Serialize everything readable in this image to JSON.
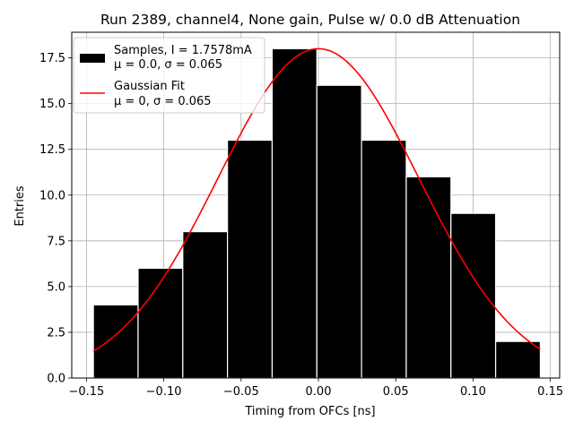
{
  "chart_data": {
    "type": "bar",
    "title": "Run 2389, channel4, None gain, Pulse w/ 0.0 dB Attenuation",
    "xlabel": "Timing from OFCs [ns]",
    "ylabel": "Entries",
    "xlim": [
      -0.1595,
      0.156
    ],
    "ylim": [
      0,
      18.9
    ],
    "grid": true,
    "legend_position": "top-left",
    "xticks": [
      -0.15,
      -0.1,
      -0.05,
      0.0,
      0.05,
      0.1,
      0.15
    ],
    "xtick_labels": [
      "−0.15",
      "−0.10",
      "−0.05",
      "0.00",
      "0.05",
      "0.10",
      "0.15"
    ],
    "yticks": [
      0.0,
      2.5,
      5.0,
      7.5,
      10.0,
      12.5,
      15.0,
      17.5
    ],
    "ytick_labels": [
      "0.0",
      "2.5",
      "5.0",
      "7.5",
      "10.0",
      "12.5",
      "15.0",
      "17.5"
    ],
    "bin_edges": [
      -0.1455,
      -0.1166,
      -0.0877,
      -0.0588,
      -0.0299,
      -0.001,
      0.0279,
      0.0568,
      0.0857,
      0.1146,
      0.1435
    ],
    "histogram": {
      "name": "Samples, I = 1.7578mA",
      "name_line2": "μ = 0.0, σ = 0.065",
      "values": [
        4,
        6,
        8,
        13,
        18,
        16,
        13,
        11,
        9,
        2
      ],
      "color": "#000000",
      "edge_color": "#ffffff"
    },
    "fit": {
      "name": "Gaussian Fit",
      "name_line2": "μ = 0, σ = 0.065",
      "amplitude": 18.0,
      "mu": 0.0,
      "sigma": 0.065,
      "x_start": -0.1455,
      "x_end": 0.1435,
      "color": "#ff0000"
    },
    "grid_color": "#b0b0b0"
  }
}
